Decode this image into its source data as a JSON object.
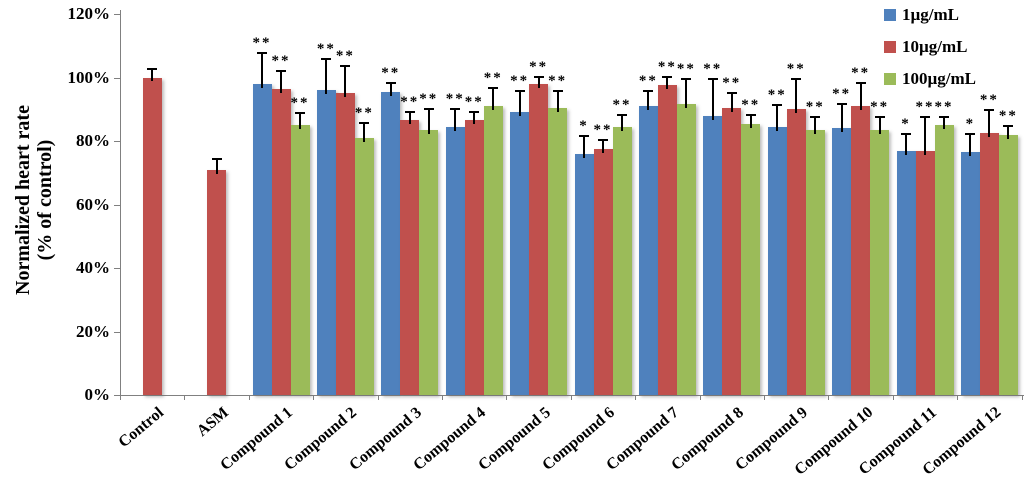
{
  "figure": {
    "background": "#ffffff",
    "axis_color": "#808080"
  },
  "axes": {
    "y_title_line1": "Normalized heart rate",
    "y_title_line2": "(% of control)",
    "yticks": [
      {
        "value": 0,
        "label": "0%"
      },
      {
        "value": 20,
        "label": "20%"
      },
      {
        "value": 40,
        "label": "40%"
      },
      {
        "value": 60,
        "label": "60%"
      },
      {
        "value": 80,
        "label": "80%"
      },
      {
        "value": 100,
        "label": "100%"
      },
      {
        "value": 120,
        "label": "120%"
      }
    ]
  },
  "chart_data": {
    "type": "bar",
    "title": "",
    "ylabel": "Normalized heart rate (% of control)",
    "xlabel": "",
    "ylim": [
      0,
      120
    ],
    "grid": false,
    "legend_position": "top-right",
    "error_bars": "upper whisker with cap",
    "significance_note": "asterisks above error bars",
    "categories": [
      "Control",
      "ASM",
      "Compound 1",
      "Compound 2",
      "Compound 3",
      "Compound 4",
      "Compound 5",
      "Compound 6",
      "Compound 7",
      "Compound 8",
      "Compound 9",
      "Compound 10",
      "Compound 11",
      "Compound 12"
    ],
    "series": [
      {
        "name": "1µg/mL",
        "color": "#4F81BD",
        "values": [
          null,
          null,
          98,
          96,
          95.5,
          84.5,
          89,
          76,
          91,
          88,
          84.5,
          84,
          77,
          76.5
        ],
        "errors_up": [
          null,
          null,
          10,
          10,
          3,
          6,
          7,
          6,
          5,
          12,
          7,
          8,
          5.5,
          6
        ],
        "significance": [
          "",
          "",
          "**",
          "**",
          "**",
          "**",
          "**",
          "*",
          "**",
          "**",
          "**",
          "**",
          "*",
          "*"
        ]
      },
      {
        "name": "10µg/mL",
        "color": "#C0504D",
        "values": [
          100,
          71,
          96.5,
          95,
          86.5,
          86.5,
          98,
          77.5,
          97.5,
          90.5,
          90,
          91,
          77,
          82.5
        ],
        "errors_up": [
          3,
          3.5,
          6,
          9,
          3,
          3,
          2.5,
          3,
          3,
          5,
          10,
          7.5,
          11,
          7.5
        ],
        "significance": [
          "",
          "",
          "**",
          "**",
          "**",
          "**",
          "**",
          "**",
          "**",
          "**",
          "**",
          "**",
          "**",
          "**"
        ]
      },
      {
        "name": "100µg/mL",
        "color": "#9BBB59",
        "values": [
          null,
          null,
          85,
          81,
          83.5,
          91,
          90.5,
          84.5,
          91.5,
          85.5,
          83.5,
          83.5,
          85,
          82
        ],
        "errors_up": [
          null,
          null,
          4,
          5,
          7,
          6,
          5.5,
          4,
          8.5,
          3,
          4.5,
          4.5,
          3,
          3
        ],
        "significance": [
          "",
          "",
          "**",
          "**",
          "**",
          "**",
          "**",
          "**",
          "**",
          "**",
          "**",
          "**",
          "**",
          "**"
        ]
      }
    ]
  }
}
